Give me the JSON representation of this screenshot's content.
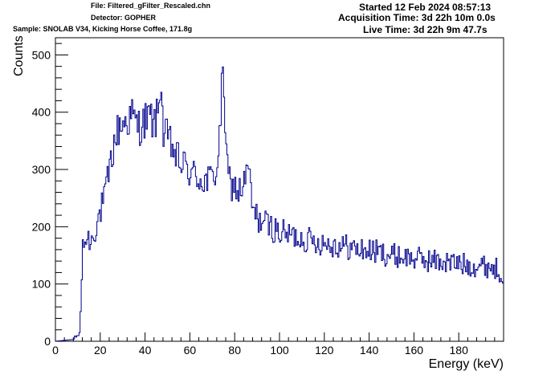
{
  "header": {
    "file": "File: Filtered_gFilter_Rescaled.chn",
    "detector": "Detector: GOPHER",
    "sample": "Sample: SNOLAB V34, Kicking Horse Coffee, 171.8g",
    "started": "Started 12 Feb 2024 08:57:13",
    "acquisition_time": "Acquisition Time: 3d 22h 10m 0.0s",
    "live_time": "Live Time: 3d 22h 9m 47.7s"
  },
  "chart_data": {
    "type": "line",
    "style": "step histogram",
    "line_color": "#00008b",
    "xlabel": "Energy (keV)",
    "ylabel": "Counts",
    "xlim": [
      0,
      200
    ],
    "ylim": [
      0,
      530
    ],
    "x_ticks": [
      0,
      20,
      40,
      60,
      80,
      100,
      120,
      140,
      160,
      180
    ],
    "y_ticks": [
      0,
      100,
      200,
      300,
      400,
      500
    ],
    "grid": false,
    "bin_width_kev": 0.5,
    "approx_points": [
      [
        0,
        0
      ],
      [
        5,
        2
      ],
      [
        8,
        3
      ],
      [
        10,
        10
      ],
      [
        11,
        15
      ],
      [
        12,
        150
      ],
      [
        13,
        175
      ],
      [
        14,
        180
      ],
      [
        16,
        175
      ],
      [
        18,
        200
      ],
      [
        20,
        225
      ],
      [
        22,
        250
      ],
      [
        24,
        295
      ],
      [
        26,
        340
      ],
      [
        28,
        370
      ],
      [
        30,
        380
      ],
      [
        32,
        385
      ],
      [
        34,
        395
      ],
      [
        36,
        380
      ],
      [
        38,
        375
      ],
      [
        40,
        385
      ],
      [
        42,
        390
      ],
      [
        44,
        380
      ],
      [
        46,
        395
      ],
      [
        46.5,
        440
      ],
      [
        47,
        470
      ],
      [
        47.5,
        430
      ],
      [
        48,
        360
      ],
      [
        50,
        355
      ],
      [
        52,
        340
      ],
      [
        54,
        320
      ],
      [
        56,
        310
      ],
      [
        58,
        305
      ],
      [
        60,
        295
      ],
      [
        62,
        290
      ],
      [
        64,
        285
      ],
      [
        66,
        280
      ],
      [
        68,
        280
      ],
      [
        70,
        285
      ],
      [
        72,
        300
      ],
      [
        73,
        340
      ],
      [
        74,
        400
      ],
      [
        74.8,
        505
      ],
      [
        75.5,
        420
      ],
      [
        76,
        320
      ],
      [
        78,
        275
      ],
      [
        80,
        270
      ],
      [
        82,
        260
      ],
      [
        84,
        270
      ],
      [
        85,
        290
      ],
      [
        86,
        305
      ],
      [
        87,
        270
      ],
      [
        88,
        230
      ],
      [
        90,
        215
      ],
      [
        92,
        210
      ],
      [
        94,
        205
      ],
      [
        96,
        200
      ],
      [
        98,
        195
      ],
      [
        100,
        190
      ],
      [
        105,
        185
      ],
      [
        110,
        180
      ],
      [
        115,
        175
      ],
      [
        120,
        172
      ],
      [
        125,
        168
      ],
      [
        130,
        165
      ],
      [
        135,
        160
      ],
      [
        140,
        158
      ],
      [
        145,
        155
      ],
      [
        150,
        150
      ],
      [
        155,
        148
      ],
      [
        160,
        145
      ],
      [
        165,
        142
      ],
      [
        170,
        140
      ],
      [
        175,
        138
      ],
      [
        180,
        135
      ],
      [
        185,
        133
      ],
      [
        190,
        132
      ],
      [
        195,
        130
      ],
      [
        199.5,
        120
      ]
    ]
  }
}
